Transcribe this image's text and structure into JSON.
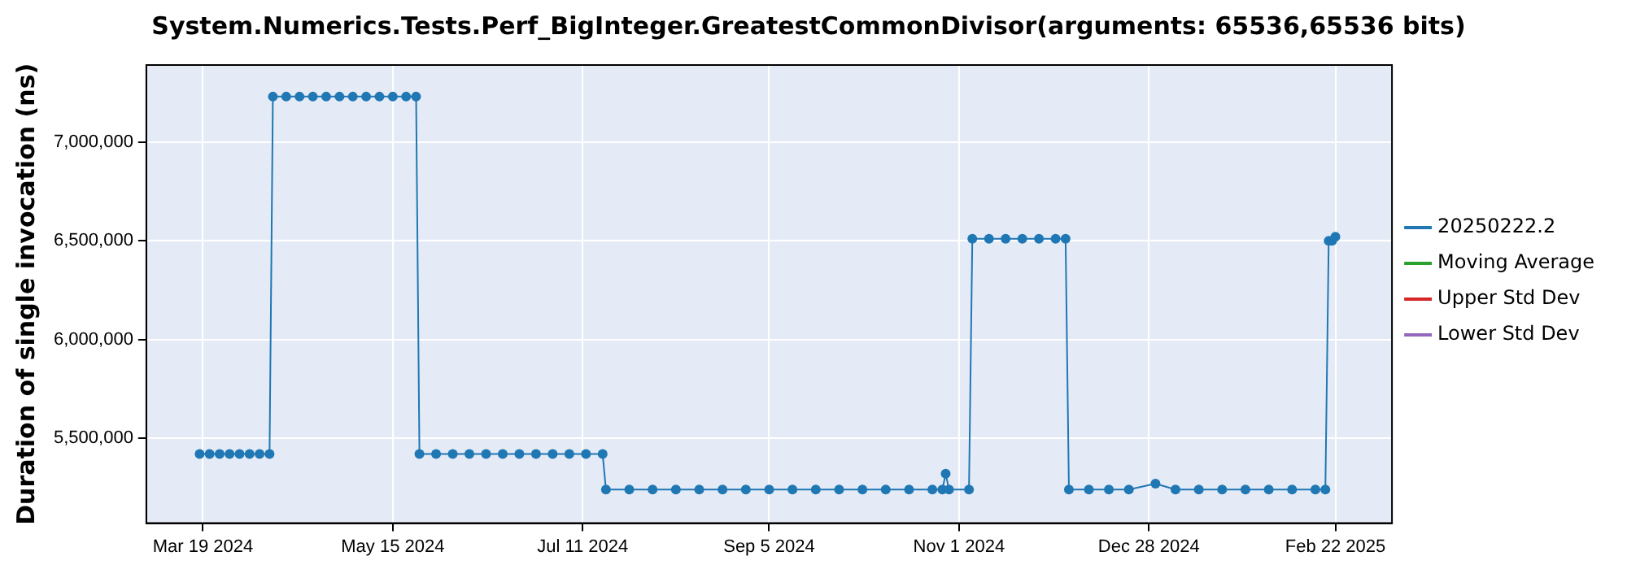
{
  "chart_data": {
    "type": "line",
    "title": "System.Numerics.Tests.Perf_BigInteger.GreatestCommonDivisor(arguments: 65536,65536 bits)",
    "ylabel": "Duration of single invocation (ns)",
    "xlim": [
      "2024-03-02",
      "2025-03-11"
    ],
    "xticks": [
      {
        "value": "2024-03-19",
        "label": "Mar 19 2024"
      },
      {
        "value": "2024-05-15",
        "label": "May 15 2024"
      },
      {
        "value": "2024-07-11",
        "label": "Jul 11 2024"
      },
      {
        "value": "2024-09-05",
        "label": "Sep 5 2024"
      },
      {
        "value": "2024-11-01",
        "label": "Nov 1 2024"
      },
      {
        "value": "2024-12-28",
        "label": "Dec 28 2024"
      },
      {
        "value": "2025-02-22",
        "label": "Feb 22 2025"
      }
    ],
    "ylim": [
      5070000,
      7390000
    ],
    "yticks": [
      {
        "value": 5500000,
        "label": "5,500,000"
      },
      {
        "value": 6000000,
        "label": "6,000,000"
      },
      {
        "value": 6500000,
        "label": "6,500,000"
      },
      {
        "value": 7000000,
        "label": "7,000,000"
      }
    ],
    "grid": true,
    "legend": "right",
    "marker": "circle",
    "line_style": "solid",
    "series": [
      {
        "name": "20250222.2",
        "color": "#1f77b4",
        "x": [
          "2024-03-18",
          "2024-03-21",
          "2024-03-24",
          "2024-03-27",
          "2024-03-30",
          "2024-04-02",
          "2024-04-05",
          "2024-04-08",
          "2024-04-09",
          "2024-04-13",
          "2024-04-17",
          "2024-04-21",
          "2024-04-25",
          "2024-04-29",
          "2024-05-03",
          "2024-05-07",
          "2024-05-11",
          "2024-05-15",
          "2024-05-19",
          "2024-05-22",
          "2024-05-23",
          "2024-05-28",
          "2024-06-02",
          "2024-06-07",
          "2024-06-12",
          "2024-06-17",
          "2024-06-22",
          "2024-06-27",
          "2024-07-02",
          "2024-07-07",
          "2024-07-12",
          "2024-07-17",
          "2024-07-18",
          "2024-07-25",
          "2024-08-01",
          "2024-08-08",
          "2024-08-15",
          "2024-08-22",
          "2024-08-29",
          "2024-09-05",
          "2024-09-12",
          "2024-09-19",
          "2024-09-26",
          "2024-10-03",
          "2024-10-10",
          "2024-10-17",
          "2024-10-24",
          "2024-10-27",
          "2024-10-28",
          "2024-10-29",
          "2024-11-04",
          "2024-11-05",
          "2024-11-10",
          "2024-11-15",
          "2024-11-20",
          "2024-11-25",
          "2024-11-30",
          "2024-12-03",
          "2024-12-04",
          "2024-12-10",
          "2024-12-16",
          "2024-12-22",
          "2024-12-30",
          "2025-01-05",
          "2025-01-12",
          "2025-01-19",
          "2025-01-26",
          "2025-02-02",
          "2025-02-09",
          "2025-02-16",
          "2025-02-19",
          "2025-02-20",
          "2025-02-21",
          "2025-02-22"
        ],
        "values": [
          5420000,
          5420000,
          5420000,
          5420000,
          5420000,
          5420000,
          5420000,
          5420000,
          7230000,
          7230000,
          7230000,
          7230000,
          7230000,
          7230000,
          7230000,
          7230000,
          7230000,
          7230000,
          7230000,
          7230000,
          5420000,
          5420000,
          5420000,
          5420000,
          5420000,
          5420000,
          5420000,
          5420000,
          5420000,
          5420000,
          5420000,
          5420000,
          5240000,
          5240000,
          5240000,
          5240000,
          5240000,
          5240000,
          5240000,
          5240000,
          5240000,
          5240000,
          5240000,
          5240000,
          5240000,
          5240000,
          5240000,
          5240000,
          5320000,
          5240000,
          5240000,
          6510000,
          6510000,
          6510000,
          6510000,
          6510000,
          6510000,
          6510000,
          5240000,
          5240000,
          5240000,
          5240000,
          5270000,
          5240000,
          5240000,
          5240000,
          5240000,
          5240000,
          5240000,
          5240000,
          5240000,
          6500000,
          6500000,
          6520000
        ]
      },
      {
        "name": "Moving Average",
        "color": "#2ca02c"
      },
      {
        "name": "Upper Std Dev",
        "color": "#d62728"
      },
      {
        "name": "Lower Std Dev",
        "color": "#9467bd"
      }
    ]
  }
}
